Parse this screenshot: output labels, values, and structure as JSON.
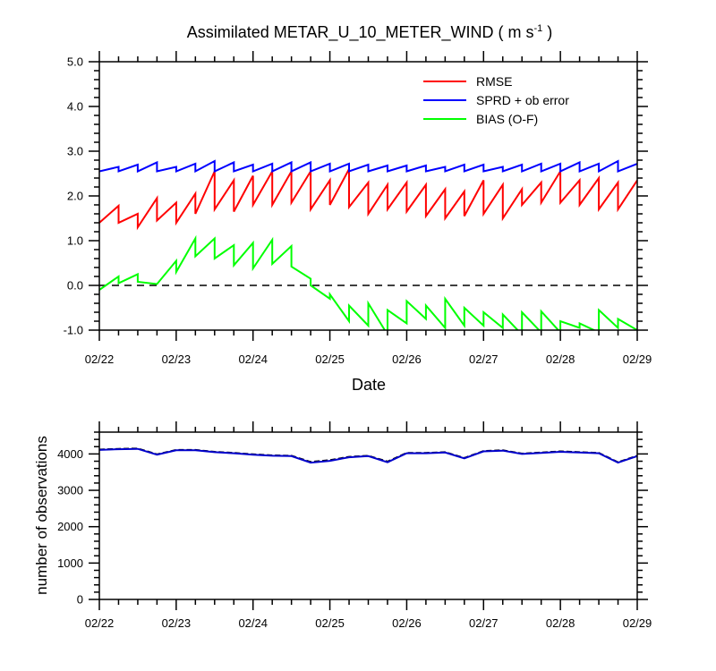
{
  "chart_data": [
    {
      "type": "line",
      "title_main": "Assimilated METAR_U_10_METER_WIND ( m s",
      "title_sup": "-1",
      "title_end": " )",
      "xlabel": "Date",
      "ylabel": "",
      "x_tick_labels": [
        "02/22",
        "02/23",
        "02/24",
        "02/25",
        "02/26",
        "02/27",
        "02/28",
        "02/29"
      ],
      "xlim": [
        0,
        7
      ],
      "ylim": [
        -1,
        5
      ],
      "y_ticks": [
        -1.0,
        0.0,
        1.0,
        2.0,
        3.0,
        4.0,
        5.0
      ],
      "y_tick_labels": [
        "-1.0",
        "0.0",
        "1.0",
        "2.0",
        "3.0",
        "4.0",
        "5.0"
      ],
      "zero_reference_line": "dashed",
      "legend_position": "top-right",
      "series": [
        {
          "name": "RMSE",
          "color": "#ff0000",
          "x": [
            0,
            0.25,
            0.25,
            0.5,
            0.5,
            0.5,
            0.75,
            0.75,
            1,
            1,
            1.25,
            1.25,
            1.5,
            1.5,
            1.75,
            1.75,
            2,
            2,
            2.25,
            2.25,
            2.5,
            2.5,
            2.75,
            2.75,
            3,
            3,
            3.25,
            3.25,
            3.5,
            3.5,
            3.75,
            3.75,
            4,
            4,
            4.25,
            4.25,
            4.5,
            4.5,
            4.75,
            4.75,
            5,
            5,
            5.25,
            5.25,
            5.5,
            5.5,
            5.75,
            5.75,
            6,
            6,
            6.25,
            6.25,
            6.5,
            6.5,
            6.75,
            6.75,
            7
          ],
          "y": [
            1.4,
            1.78,
            1.4,
            1.6,
            1.3,
            1.3,
            1.95,
            1.45,
            1.85,
            1.4,
            2.05,
            1.6,
            2.55,
            1.7,
            2.35,
            1.65,
            2.45,
            1.8,
            2.55,
            1.8,
            2.55,
            1.85,
            2.55,
            1.7,
            2.35,
            1.8,
            2.6,
            1.75,
            2.3,
            1.6,
            2.25,
            1.7,
            2.3,
            1.65,
            2.25,
            1.55,
            2.15,
            1.5,
            2.1,
            1.55,
            2.35,
            1.6,
            2.25,
            1.5,
            2.15,
            1.8,
            2.3,
            1.85,
            2.55,
            1.85,
            2.35,
            1.8,
            2.4,
            1.7,
            2.3,
            1.7,
            2.35
          ]
        },
        {
          "name": "SPRD + ob error",
          "color": "#0000ff",
          "x": [
            0,
            0.25,
            0.25,
            0.5,
            0.5,
            0.75,
            0.75,
            1,
            1,
            1.25,
            1.25,
            1.5,
            1.5,
            1.75,
            1.75,
            2,
            2,
            2.25,
            2.25,
            2.5,
            2.5,
            2.75,
            2.75,
            3,
            3,
            3.25,
            3.25,
            3.5,
            3.5,
            3.75,
            3.75,
            4,
            4,
            4.25,
            4.25,
            4.5,
            4.5,
            4.75,
            4.75,
            5,
            5,
            5.25,
            5.25,
            5.5,
            5.5,
            5.75,
            5.75,
            6,
            6,
            6.25,
            6.25,
            6.5,
            6.5,
            6.75,
            6.75,
            7
          ],
          "y": [
            2.55,
            2.65,
            2.55,
            2.7,
            2.55,
            2.75,
            2.55,
            2.65,
            2.55,
            2.72,
            2.55,
            2.78,
            2.55,
            2.75,
            2.55,
            2.7,
            2.55,
            2.72,
            2.55,
            2.75,
            2.55,
            2.75,
            2.55,
            2.72,
            2.55,
            2.72,
            2.55,
            2.7,
            2.55,
            2.68,
            2.55,
            2.68,
            2.55,
            2.68,
            2.55,
            2.65,
            2.55,
            2.7,
            2.55,
            2.7,
            2.55,
            2.65,
            2.55,
            2.7,
            2.55,
            2.72,
            2.55,
            2.72,
            2.55,
            2.75,
            2.55,
            2.72,
            2.55,
            2.78,
            2.55,
            2.72
          ]
        },
        {
          "name": "BIAS (O-F)",
          "color": "#00ff00",
          "x": [
            0,
            0.25,
            0.25,
            0.5,
            0.5,
            0.75,
            1,
            1,
            1.25,
            1.25,
            1.5,
            1.5,
            1.75,
            1.75,
            2,
            2,
            2.25,
            2.25,
            2.5,
            2.5,
            2.75,
            2.75,
            3,
            3,
            3.25,
            3.25,
            3.5,
            3.5,
            3.75,
            3.75,
            4,
            4,
            4.25,
            4.25,
            4.5,
            4.5,
            4.75,
            4.75,
            5,
            5,
            5.25,
            5.25,
            5.5,
            5.5,
            5.75,
            5.75,
            6,
            6,
            6.25,
            6.25,
            6.5,
            6.5,
            6.75,
            6.75,
            7
          ],
          "y": [
            -0.1,
            0.2,
            0.05,
            0.25,
            0.08,
            0.03,
            0.55,
            0.3,
            1.05,
            0.65,
            1.05,
            0.6,
            0.9,
            0.45,
            0.95,
            0.38,
            1.02,
            0.48,
            0.88,
            0.42,
            0.15,
            0.0,
            -0.3,
            -0.2,
            -0.8,
            -0.45,
            -0.9,
            -0.4,
            -1.1,
            -0.55,
            -0.85,
            -0.35,
            -0.75,
            -0.45,
            -0.95,
            -0.3,
            -0.9,
            -0.5,
            -0.9,
            -0.6,
            -0.95,
            -0.65,
            -1.1,
            -0.6,
            -1.05,
            -0.58,
            -1.05,
            -0.8,
            -0.95,
            -0.85,
            -1.05,
            -0.55,
            -0.95,
            -0.75,
            -1.0
          ]
        }
      ]
    },
    {
      "type": "line",
      "xlabel": "",
      "ylabel": "number of observations",
      "x_tick_labels": [
        "02/22",
        "02/23",
        "02/24",
        "02/25",
        "02/26",
        "02/27",
        "02/28",
        "02/29"
      ],
      "xlim": [
        0,
        7
      ],
      "ylim": [
        0,
        4600
      ],
      "y_ticks": [
        0,
        1000,
        2000,
        3000,
        4000
      ],
      "y_tick_labels": [
        "0",
        "1000",
        "2000",
        "3000",
        "4000"
      ],
      "series": [
        {
          "color": "#000000",
          "x": [
            0,
            0.25,
            0.5,
            0.75,
            1,
            1.25,
            1.5,
            1.75,
            2,
            2.25,
            2.5,
            2.75,
            3,
            3.25,
            3.5,
            3.75,
            4,
            4.25,
            4.5,
            4.75,
            5,
            5.25,
            5.5,
            5.75,
            6,
            6.25,
            6.5,
            6.75,
            7
          ],
          "y": [
            4120,
            4140,
            4150,
            3990,
            4110,
            4110,
            4060,
            4030,
            3990,
            3960,
            3950,
            3780,
            3830,
            3920,
            3950,
            3790,
            4030,
            4030,
            4050,
            3890,
            4080,
            4100,
            4010,
            4040,
            4070,
            4050,
            4030,
            3770,
            3950
          ],
          "dash": "6,3"
        },
        {
          "color": "#0000cc",
          "x": [
            0,
            0.25,
            0.5,
            0.75,
            1,
            1.25,
            1.5,
            1.75,
            2,
            2.25,
            2.5,
            2.75,
            3,
            3.25,
            3.5,
            3.75,
            4,
            4.25,
            4.5,
            4.75,
            5,
            5.25,
            5.5,
            5.75,
            6,
            6.25,
            6.5,
            6.75,
            7
          ],
          "y": [
            4110,
            4130,
            4140,
            3980,
            4100,
            4100,
            4050,
            4020,
            3980,
            3950,
            3940,
            3760,
            3810,
            3910,
            3940,
            3770,
            4020,
            4020,
            4040,
            3880,
            4070,
            4090,
            4000,
            4030,
            4060,
            4040,
            4020,
            3760,
            3940
          ]
        }
      ]
    }
  ]
}
